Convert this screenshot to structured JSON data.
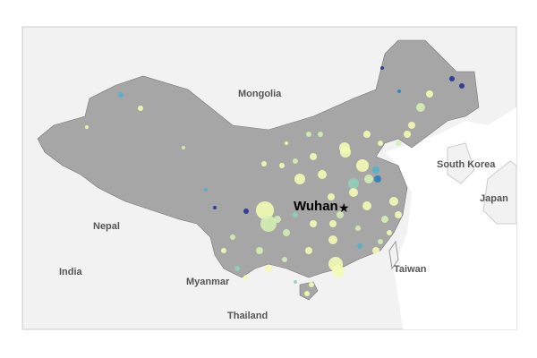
{
  "labels": {
    "mongolia": "Mongolia",
    "south_korea": "South Korea",
    "japan": "Japan",
    "nepal": "Nepal",
    "india": "India",
    "myanmar": "Myanmar",
    "thailand": "Thailand",
    "taiwan": "Taiwan",
    "wuhan": "Wuhan"
  },
  "icons": {
    "wuhan_marker": "star-icon"
  },
  "colors": {
    "china_fill": "#a6a6a6",
    "neighbors_fill": "#f2f2f2",
    "sea": "#ffffff",
    "scale": [
      "#f4fbb4",
      "#d4eeb2",
      "#8fd0bb",
      "#4fb3cb",
      "#2c7fb8",
      "#253494"
    ]
  }
}
